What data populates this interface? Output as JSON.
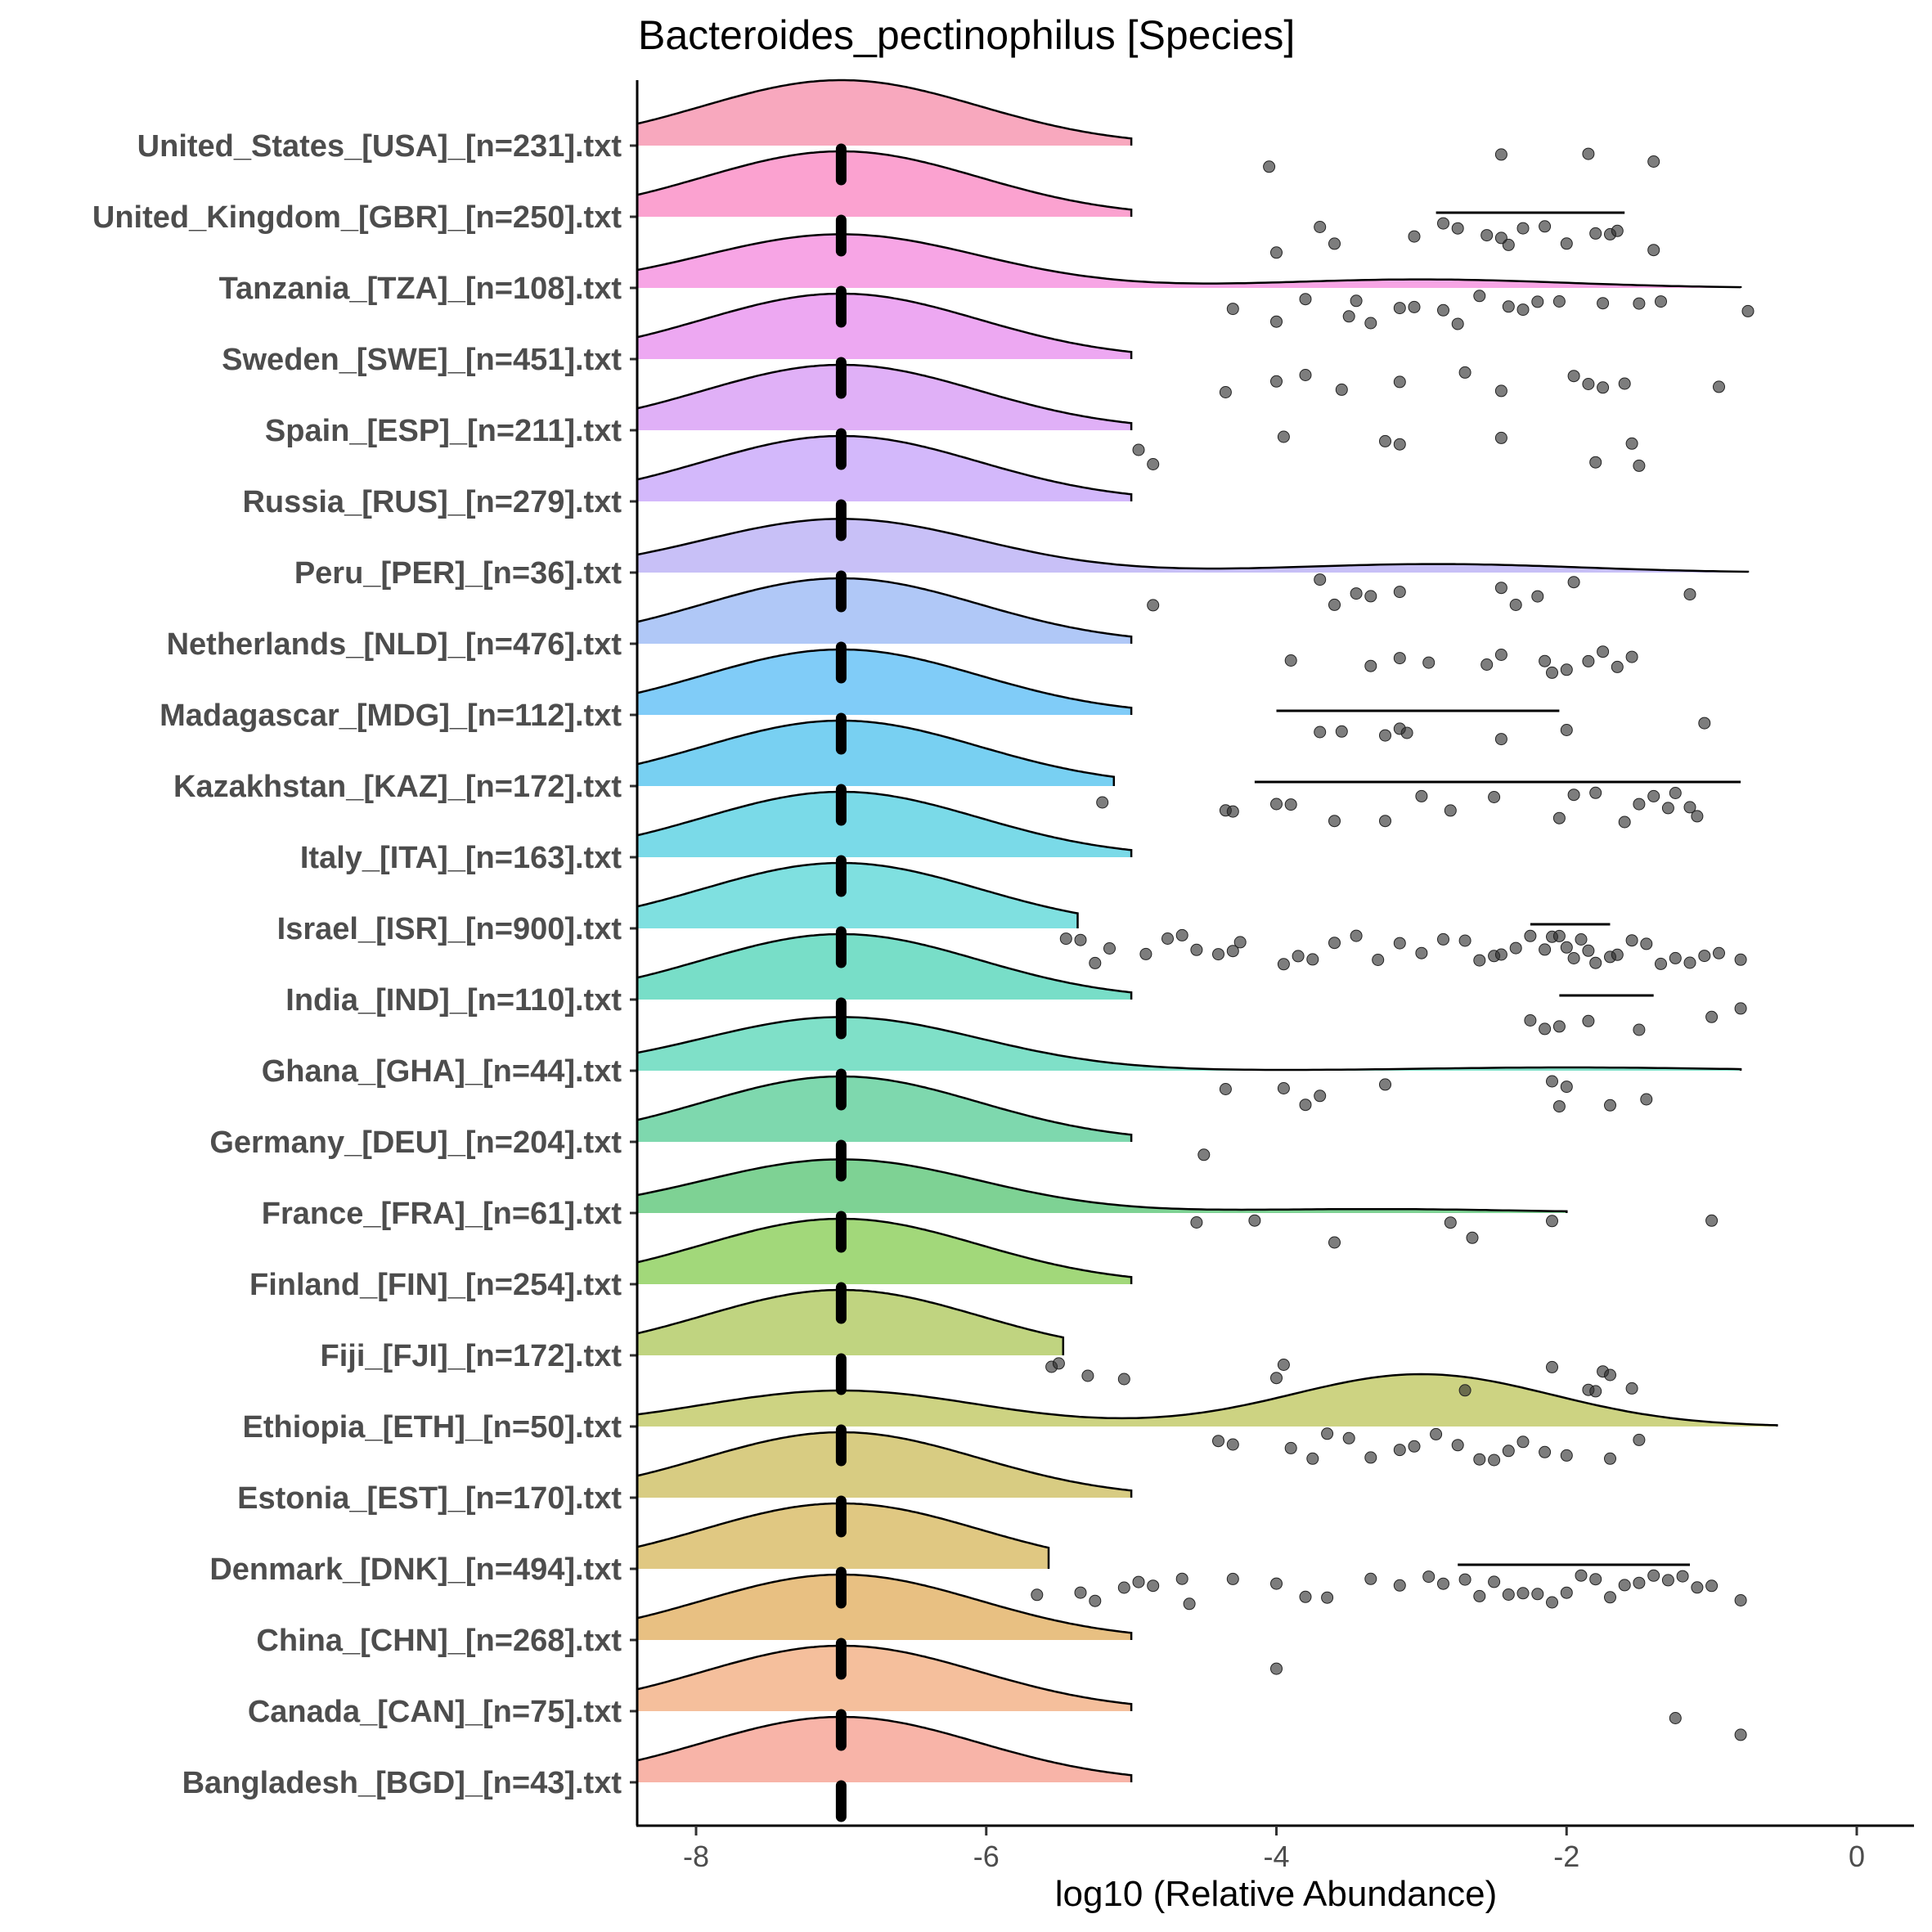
{
  "chart_data": {
    "type": "raincloud",
    "title": "Bacteroides_pectinophilus [Species]",
    "xlabel": "log10 (Relative Abundance)",
    "ylabel": "",
    "xlim": [
      -8.4,
      0.4
    ],
    "xticks": [
      -8,
      -6,
      -4,
      -2,
      0
    ],
    "xtick_labels": [
      "-8",
      "-6",
      "-4",
      "-2",
      "0"
    ],
    "grid": false,
    "baseline_value": -7,
    "categories": [
      {
        "label": "United_States_[USA]_[n=231].txt",
        "color": "#F8A8BE",
        "second_mode": null,
        "points": [
          -4.05,
          -2.45,
          -1.85,
          -1.4
        ],
        "whisker": null
      },
      {
        "label": "United_Kingdom_[GBR]_[n=250].txt",
        "color": "#FBA2D0",
        "second_mode": null,
        "points": [
          -4.0,
          -3.7,
          -3.6,
          -3.05,
          -2.85,
          -2.75,
          -2.55,
          -2.45,
          -2.4,
          -2.3,
          -2.15,
          -2.0,
          -1.8,
          -1.7,
          -1.65,
          -1.4
        ],
        "whisker": [
          -2.9,
          -1.6
        ]
      },
      {
        "label": "Tanzania_[TZA]_[n=108].txt",
        "color": "#F7A5E5",
        "second_mode": {
          "center": -3.0,
          "height": 0.13,
          "end": -0.8
        },
        "points": [
          -4.3,
          -4.0,
          -3.8,
          -3.5,
          -3.45,
          -3.35,
          -3.15,
          -3.05,
          -2.85,
          -2.75,
          -2.6,
          -2.4,
          -2.3,
          -2.2,
          -2.05,
          -1.75,
          -1.5,
          -1.35,
          -0.75
        ],
        "whisker": null
      },
      {
        "label": "Sweden_[SWE]_[n=451].txt",
        "color": "#EDA8F2",
        "second_mode": null,
        "points": [
          -4.35,
          -4.0,
          -3.8,
          -3.55,
          -3.15,
          -2.7,
          -2.45,
          -1.95,
          -1.85,
          -1.75,
          -1.6,
          -0.95
        ],
        "whisker": null
      },
      {
        "label": "Spain_[ESP]_[n=211].txt",
        "color": "#E0B0F7",
        "second_mode": null,
        "points": [
          -4.95,
          -4.85,
          -3.95,
          -3.25,
          -3.15,
          -2.45,
          -1.8,
          -1.55,
          -1.5
        ],
        "whisker": null
      },
      {
        "label": "Russia_[RUS]_[n=279].txt",
        "color": "#D3B8FB",
        "second_mode": null,
        "points": [],
        "whisker": null
      },
      {
        "label": "Peru_[PER]_[n=36].txt",
        "color": "#C8C0F7",
        "second_mode": {
          "center": -2.9,
          "height": 0.13,
          "end": -0.75
        },
        "points": [
          -4.85,
          -3.7,
          -3.6,
          -3.45,
          -3.35,
          -3.15,
          -2.45,
          -2.35,
          -2.2,
          -1.95,
          -1.15
        ],
        "whisker": null
      },
      {
        "label": "Netherlands_[NLD]_[n=476].txt",
        "color": "#B0C8F7",
        "second_mode": null,
        "points": [
          -3.9,
          -3.35,
          -3.15,
          -2.95,
          -2.55,
          -2.45,
          -2.15,
          -2.1,
          -2.0,
          -1.85,
          -1.75,
          -1.65,
          -1.55
        ],
        "whisker": null
      },
      {
        "label": "Madagascar_[MDG]_[n=112].txt",
        "color": "#80CCF8",
        "second_mode": null,
        "points": [
          -3.7,
          -3.55,
          -3.25,
          -3.15,
          -3.1,
          -2.45,
          -2.0,
          -1.05
        ],
        "whisker": [
          -4.0,
          -2.05
        ]
      },
      {
        "label": "Kazakhstan_[KAZ]_[n=172].txt",
        "color": "#78D0F2",
        "second_mode": null,
        "points": [
          -5.2,
          -4.35,
          -4.3,
          -4.0,
          -3.9,
          -3.6,
          -3.25,
          -3.0,
          -2.8,
          -2.5,
          -2.05,
          -1.95,
          -1.8,
          -1.6,
          -1.5,
          -1.4,
          -1.3,
          -1.25,
          -1.15,
          -1.1
        ],
        "whisker": [
          -4.15,
          -0.8
        ]
      },
      {
        "label": "Italy_[ITA]_[n=163].txt",
        "color": "#7ADAE8",
        "second_mode": null,
        "points": [],
        "whisker": null
      },
      {
        "label": "Israel_[ISR]_[n=900].txt",
        "color": "#7FE0E0",
        "second_mode": null,
        "points": [
          -5.45,
          -5.35,
          -5.25,
          -5.15,
          -4.9,
          -4.75,
          -4.65,
          -4.55,
          -4.4,
          -4.3,
          -4.25,
          -3.95,
          -3.85,
          -3.75,
          -3.6,
          -3.45,
          -3.3,
          -3.15,
          -3.0,
          -2.85,
          -2.7,
          -2.6,
          -2.5,
          -2.45,
          -2.35,
          -2.25,
          -2.15,
          -2.1,
          -2.05,
          -2.0,
          -1.95,
          -1.9,
          -1.85,
          -1.8,
          -1.7,
          -1.65,
          -1.55,
          -1.45,
          -1.35,
          -1.25,
          -1.15,
          -1.05,
          -0.95,
          -0.8
        ],
        "whisker": [
          -2.25,
          -1.7
        ]
      },
      {
        "label": "India_[IND]_[n=110].txt",
        "color": "#78DEC8",
        "second_mode": null,
        "points": [
          -2.25,
          -2.15,
          -2.05,
          -1.85,
          -1.5,
          -1.0,
          -0.8
        ],
        "whisker": [
          -2.05,
          -1.4
        ]
      },
      {
        "label": "Ghana_[GHA]_[n=44].txt",
        "color": "#7FE0C8",
        "second_mode": {
          "center": -2.0,
          "height": 0.05,
          "end": -0.8
        },
        "points": [
          -4.35,
          -3.95,
          -3.8,
          -3.7,
          -3.25,
          -2.1,
          -2.05,
          -2.0,
          -1.7,
          -1.45
        ],
        "whisker": null
      },
      {
        "label": "Germany_[DEU]_[n=204].txt",
        "color": "#7ED8AE",
        "second_mode": null,
        "points": [
          -4.5
        ],
        "whisker": null
      },
      {
        "label": "France_[FRA]_[n=61].txt",
        "color": "#7ED294",
        "second_mode": {
          "center": -3.3,
          "height": 0.06,
          "end": -2.0
        },
        "points": [
          -4.55,
          -4.15,
          -3.6,
          -2.8,
          -2.65,
          -2.1,
          -1.0
        ],
        "whisker": null
      },
      {
        "label": "Finland_[FIN]_[n=254].txt",
        "color": "#A2D87A",
        "second_mode": null,
        "points": [],
        "whisker": null
      },
      {
        "label": "Fiji_[FJI]_[n=172].txt",
        "color": "#C0D480",
        "second_mode": null,
        "points": [
          -5.55,
          -5.5,
          -5.3,
          -5.05,
          -4.0,
          -3.95,
          -2.7,
          -2.1,
          -1.85,
          -1.8,
          -1.75,
          -1.7,
          -1.55
        ],
        "whisker": null
      },
      {
        "label": "Ethiopia_[ETH]_[n=50].txt",
        "color": "#CDD382",
        "second_mode": {
          "center": -3.0,
          "height": 0.8,
          "end": -0.55
        },
        "points": [
          -4.4,
          -4.3,
          -3.9,
          -3.75,
          -3.65,
          -3.5,
          -3.35,
          -3.15,
          -3.05,
          -2.9,
          -2.75,
          -2.6,
          -2.5,
          -2.4,
          -2.3,
          -2.15,
          -2.0,
          -1.7,
          -1.5
        ],
        "whisker": null
      },
      {
        "label": "Estonia_[EST]_[n=170].txt",
        "color": "#D8CC82",
        "second_mode": null,
        "points": [],
        "whisker": null
      },
      {
        "label": "Denmark_[DNK]_[n=494].txt",
        "color": "#E0C882",
        "second_mode": null,
        "points": [
          -5.65,
          -5.35,
          -5.25,
          -5.05,
          -4.95,
          -4.85,
          -4.65,
          -4.6,
          -4.3,
          -4.0,
          -3.8,
          -3.65,
          -3.35,
          -3.15,
          -2.95,
          -2.85,
          -2.7,
          -2.6,
          -2.5,
          -2.4,
          -2.3,
          -2.2,
          -2.1,
          -2.0,
          -1.9,
          -1.8,
          -1.7,
          -1.6,
          -1.5,
          -1.4,
          -1.3,
          -1.2,
          -1.1,
          -1.0,
          -0.8
        ],
        "whisker": [
          -2.75,
          -1.15
        ]
      },
      {
        "label": "China_[CHN]_[n=268].txt",
        "color": "#E8C082",
        "second_mode": null,
        "points": [
          -4.0
        ],
        "whisker": null
      },
      {
        "label": "Canada_[CAN]_[n=75].txt",
        "color": "#F5BF9C",
        "second_mode": null,
        "points": [
          -1.25,
          -0.8
        ],
        "whisker": null
      },
      {
        "label": "Bangladesh_[BGD]_[n=43].txt",
        "color": "#F8B4A8",
        "second_mode": null,
        "points": [],
        "whisker": null
      }
    ]
  }
}
